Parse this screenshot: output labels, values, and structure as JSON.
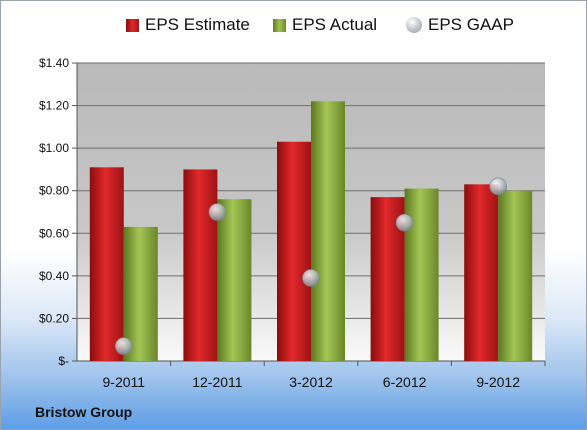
{
  "chart_data": {
    "type": "bar",
    "categories": [
      "9-2011",
      "12-2011",
      "3-2012",
      "6-2012",
      "9-2012"
    ],
    "series": [
      {
        "name": "EPS Estimate",
        "values": [
          0.91,
          0.9,
          1.03,
          0.77,
          0.83
        ],
        "color": "#c9191b",
        "kind": "bar"
      },
      {
        "name": "EPS Actual",
        "values": [
          0.63,
          0.76,
          1.22,
          0.81,
          0.8
        ],
        "color": "#8db043",
        "kind": "bar"
      },
      {
        "name": "EPS GAAP",
        "values": [
          0.07,
          0.7,
          0.39,
          0.65,
          0.82
        ],
        "color": "#b9bec4",
        "kind": "marker"
      }
    ],
    "ylim": [
      0,
      1.4
    ],
    "yticks": [
      0,
      0.2,
      0.4,
      0.6,
      0.8,
      1.0,
      1.2,
      1.4
    ],
    "ytick_labels": [
      "$-",
      "$0.20",
      "$0.40",
      "$0.60",
      "$0.80",
      "$1.00",
      "$1.20",
      "$1.40"
    ],
    "grid": true,
    "legend_position": "top"
  },
  "footer": {
    "company": "Bristow Group"
  }
}
